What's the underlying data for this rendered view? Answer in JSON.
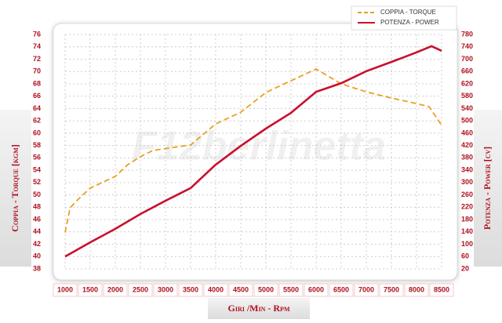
{
  "chart_data": {
    "type": "line",
    "legend": "upper right",
    "grid": true,
    "watermark": "F12berlinetta",
    "xlabel": "Giri /Min - Rpm",
    "ylabel": "Coppia - Torque [kgm]",
    "y2label": "Potenza - Power [cv]",
    "xlim": [
      1000,
      8500
    ],
    "xticks": [
      1000,
      1500,
      2000,
      2500,
      3000,
      3500,
      4000,
      4500,
      5000,
      5500,
      6000,
      6500,
      7000,
      7500,
      8000,
      8500
    ],
    "ylim": [
      38,
      76
    ],
    "yticks": [
      38,
      40,
      42,
      44,
      46,
      48,
      50,
      52,
      54,
      56,
      58,
      60,
      62,
      64,
      66,
      68,
      70,
      72,
      74,
      76
    ],
    "y2lim": [
      20,
      780
    ],
    "y2ticks": [
      20,
      60,
      100,
      140,
      180,
      220,
      260,
      300,
      340,
      380,
      420,
      460,
      500,
      540,
      580,
      620,
      660,
      700,
      740,
      780
    ],
    "series": [
      {
        "name": "COPPIA - TORQUE",
        "color": "#e8a020",
        "dashed": true,
        "x": [
          1000,
          1100,
          1250,
          1500,
          2000,
          2250,
          2500,
          2750,
          3000,
          3500,
          4000,
          4500,
          5000,
          5500,
          6000,
          6500,
          7000,
          7500,
          8000,
          8250,
          8500
        ],
        "values": [
          43.9,
          47.9,
          49.2,
          51.1,
          53,
          54.9,
          56.2,
          57.2,
          57.5,
          58.1,
          61.5,
          63.4,
          66.6,
          68.5,
          70.4,
          68,
          66.7,
          65.7,
          64.8,
          64.3,
          61.3
        ]
      },
      {
        "name": "POTENZA - POWER",
        "color": "#c8102e",
        "axis": "y2",
        "x": [
          1000,
          1500,
          2000,
          2500,
          3000,
          3500,
          4000,
          4500,
          5000,
          5500,
          6000,
          6500,
          7000,
          7500,
          8000,
          8300,
          8500
        ],
        "values": [
          60,
          106,
          150,
          198,
          241,
          282,
          358,
          419,
          475,
          526,
          594,
          622,
          661,
          691,
          722,
          742,
          727
        ]
      }
    ]
  }
}
